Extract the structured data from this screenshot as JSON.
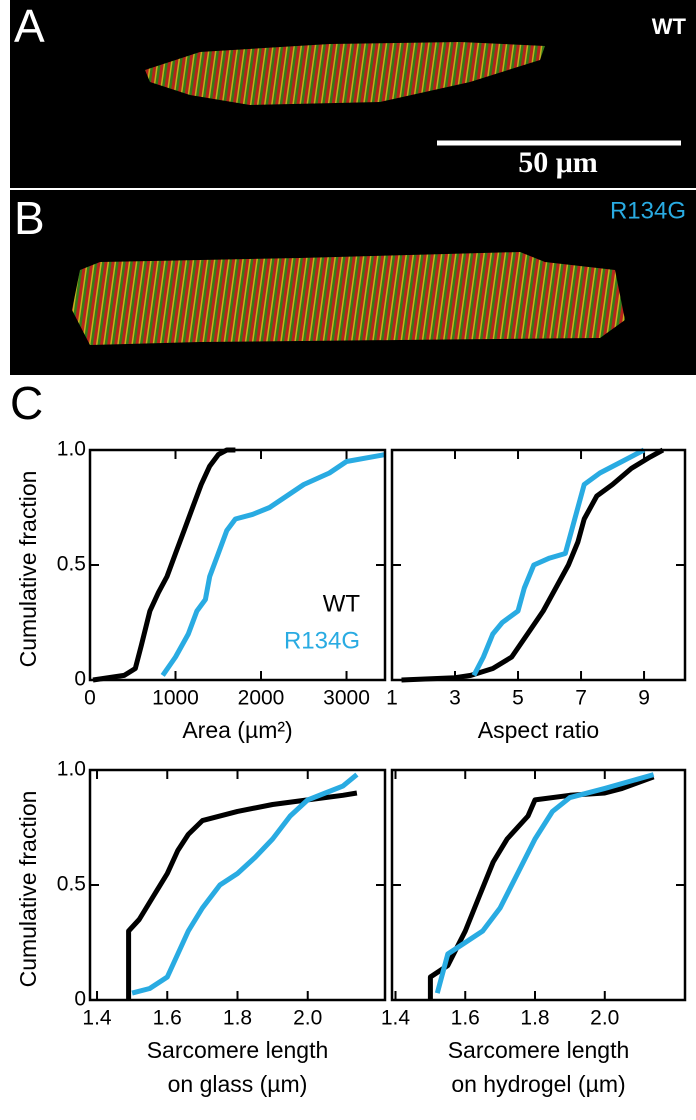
{
  "panels": {
    "a": {
      "label": "A",
      "tag": "WT",
      "scale_bar": "50 μm"
    },
    "b": {
      "label": "B",
      "tag": "R134G"
    },
    "c": {
      "label": "C"
    }
  },
  "chart_data": [
    {
      "type": "line",
      "xlabel": [
        "Area (µm²)"
      ],
      "ylabel": "Cumulative fraction",
      "legend": "right",
      "xlim": [
        0,
        3450
      ],
      "ylim": [
        0,
        1
      ],
      "xticks": [
        0,
        1000,
        2000,
        3000
      ],
      "yticks": [
        0,
        0.5,
        {
          "value": 1,
          "label": "1.0"
        }
      ],
      "series": [
        {
          "name": "WT",
          "color": "#000000",
          "x": [
            35,
            400,
            530,
            600,
            700,
            800,
            900,
            1000,
            1100,
            1200,
            1300,
            1400,
            1500,
            1600,
            1700
          ],
          "values": [
            0,
            0.02,
            0.05,
            0.15,
            0.3,
            0.38,
            0.45,
            0.55,
            0.65,
            0.75,
            0.85,
            0.93,
            0.98,
            1,
            1
          ]
        },
        {
          "name": "R134G",
          "color": "#29abe2",
          "x": [
            850,
            1000,
            1150,
            1250,
            1350,
            1400,
            1500,
            1600,
            1700,
            1900,
            2100,
            2300,
            2500,
            2800,
            3000,
            3450
          ],
          "values": [
            0.02,
            0.1,
            0.2,
            0.3,
            0.35,
            0.45,
            0.55,
            0.65,
            0.7,
            0.72,
            0.75,
            0.8,
            0.85,
            0.9,
            0.95,
            0.98
          ]
        }
      ]
    },
    {
      "type": "line",
      "xlabel": [
        "Aspect ratio"
      ],
      "xlim": [
        1,
        10.3
      ],
      "ylim": [
        0,
        1
      ],
      "xticks": [
        1,
        3,
        5,
        7,
        9
      ],
      "yticks": [
        0,
        0.5,
        {
          "value": 1,
          "label": "1.0"
        }
      ],
      "series": [
        {
          "color": "#000000",
          "x": [
            1.3,
            3,
            3.5,
            4.2,
            4.8,
            5.3,
            5.8,
            6.2,
            6.6,
            6.9,
            7.1,
            7.5,
            8,
            8.6,
            9.2,
            9.6
          ],
          "values": [
            0,
            0.01,
            0.02,
            0.05,
            0.1,
            0.2,
            0.3,
            0.4,
            0.5,
            0.6,
            0.7,
            0.8,
            0.85,
            0.92,
            0.97,
            1
          ]
        },
        {
          "color": "#29abe2",
          "x": [
            3.6,
            3.9,
            4.2,
            4.5,
            5,
            5.2,
            5.5,
            6,
            6.5,
            6.7,
            6.9,
            7.1,
            7.6,
            8.3,
            9
          ],
          "values": [
            0.02,
            0.1,
            0.2,
            0.25,
            0.3,
            0.4,
            0.5,
            0.53,
            0.55,
            0.65,
            0.75,
            0.85,
            0.9,
            0.95,
            1
          ]
        }
      ]
    },
    {
      "type": "line",
      "xlabel": [
        "Sarcomere length",
        "on glass (µm)"
      ],
      "ylabel": "Cumulative fraction",
      "xlim": [
        1.38,
        2.22
      ],
      "ylim": [
        0,
        1
      ],
      "xticks": [
        1.4,
        1.6,
        1.8,
        {
          "value": 2,
          "label": "2.0"
        }
      ],
      "yticks": [
        0,
        0.5,
        {
          "value": 1,
          "label": "1.0"
        }
      ],
      "series": [
        {
          "color": "#000000",
          "x": [
            1.49,
            1.49,
            1.52,
            1.56,
            1.6,
            1.63,
            1.66,
            1.7,
            1.8,
            1.9,
            2.0,
            2.1,
            2.14
          ],
          "values": [
            0,
            0.3,
            0.35,
            0.45,
            0.55,
            0.65,
            0.72,
            0.78,
            0.82,
            0.85,
            0.87,
            0.89,
            0.9
          ]
        },
        {
          "color": "#29abe2",
          "x": [
            1.5,
            1.55,
            1.6,
            1.63,
            1.66,
            1.7,
            1.75,
            1.8,
            1.85,
            1.9,
            1.95,
            2.0,
            2.05,
            2.1,
            2.14
          ],
          "values": [
            0.03,
            0.05,
            0.1,
            0.2,
            0.3,
            0.4,
            0.5,
            0.55,
            0.62,
            0.7,
            0.8,
            0.87,
            0.9,
            0.93,
            0.98
          ]
        }
      ]
    },
    {
      "type": "line",
      "xlabel": [
        "Sarcomere length",
        "on hydrogel (µm)"
      ],
      "xlim": [
        1.39,
        2.23
      ],
      "ylim": [
        0,
        1
      ],
      "xticks": [
        1.4,
        1.6,
        1.8,
        {
          "value": 2,
          "label": "2.0"
        }
      ],
      "yticks": [
        0,
        0.5,
        {
          "value": 1,
          "label": "1.0"
        }
      ],
      "series": [
        {
          "color": "#000000",
          "x": [
            1.5,
            1.5,
            1.55,
            1.6,
            1.64,
            1.68,
            1.72,
            1.78,
            1.8,
            1.9,
            2.0,
            2.05,
            2.14
          ],
          "values": [
            0,
            0.1,
            0.15,
            0.3,
            0.45,
            0.6,
            0.7,
            0.8,
            0.87,
            0.89,
            0.9,
            0.92,
            0.97
          ]
        },
        {
          "color": "#29abe2",
          "x": [
            1.52,
            1.55,
            1.6,
            1.65,
            1.7,
            1.75,
            1.8,
            1.85,
            1.9,
            2.0,
            2.14
          ],
          "values": [
            0.03,
            0.2,
            0.25,
            0.3,
            0.4,
            0.55,
            0.7,
            0.82,
            0.88,
            0.92,
            0.98
          ]
        }
      ]
    }
  ]
}
